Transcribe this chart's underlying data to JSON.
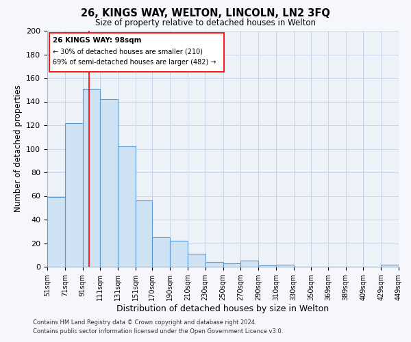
{
  "title": "26, KINGS WAY, WELTON, LINCOLN, LN2 3FQ",
  "subtitle": "Size of property relative to detached houses in Welton",
  "xlabel": "Distribution of detached houses by size in Welton",
  "ylabel": "Number of detached properties",
  "bar_labels": [
    "51sqm",
    "71sqm",
    "91sqm",
    "111sqm",
    "131sqm",
    "151sqm",
    "170sqm",
    "190sqm",
    "210sqm",
    "230sqm",
    "250sqm",
    "270sqm",
    "290sqm",
    "310sqm",
    "330sqm",
    "350sqm",
    "369sqm",
    "389sqm",
    "409sqm",
    "429sqm",
    "449sqm"
  ],
  "bar_heights": [
    59,
    122,
    151,
    142,
    102,
    56,
    25,
    22,
    11,
    4,
    3,
    5,
    1,
    2,
    0,
    0,
    0,
    0,
    0,
    2
  ],
  "bar_color": "#cfe2f3",
  "bar_edge_color": "#5b9bd5",
  "ylim": [
    0,
    200
  ],
  "yticks": [
    0,
    20,
    40,
    60,
    80,
    100,
    120,
    140,
    160,
    180,
    200
  ],
  "red_line_x": 98,
  "annotation_line1": "26 KINGS WAY: 98sqm",
  "annotation_line2": "← 30% of detached houses are smaller (210)",
  "annotation_line3": "69% of semi-detached houses are larger (482) →",
  "footer_line1": "Contains HM Land Registry data © Crown copyright and database right 2024.",
  "footer_line2": "Contains public sector information licensed under the Open Government Licence v3.0.",
  "grid_color": "#c8d4e8",
  "plot_bg_color": "#edf2f9",
  "fig_bg_color": "#f5f7fc",
  "bin_lefts": [
    51,
    71,
    91,
    111,
    131,
    151,
    170,
    190,
    210,
    230,
    250,
    270,
    290,
    310,
    330,
    350,
    369,
    389,
    409,
    429
  ],
  "bin_rights": [
    71,
    91,
    111,
    131,
    151,
    170,
    190,
    210,
    230,
    250,
    270,
    290,
    310,
    330,
    350,
    369,
    389,
    409,
    429,
    449
  ]
}
